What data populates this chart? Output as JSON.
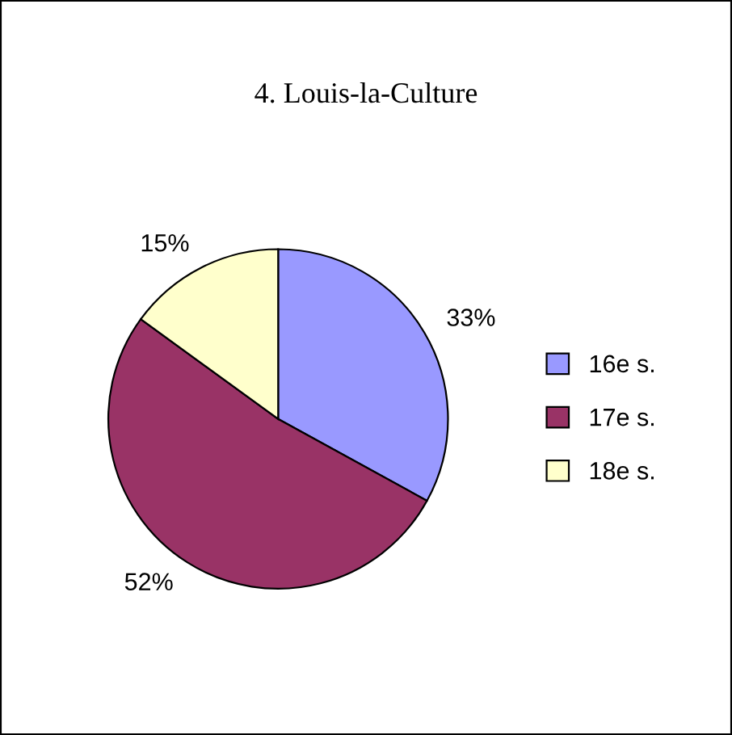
{
  "chart_data": {
    "type": "pie",
    "title": "4. Louis-la-Culture",
    "categories": [
      "16e s.",
      "17e s.",
      "18e s."
    ],
    "values": [
      33,
      52,
      15
    ],
    "colors": [
      "#9999ff",
      "#993366",
      "#ffffcc"
    ],
    "value_labels": [
      "33%",
      "52%",
      "15%"
    ],
    "legend": "right"
  }
}
